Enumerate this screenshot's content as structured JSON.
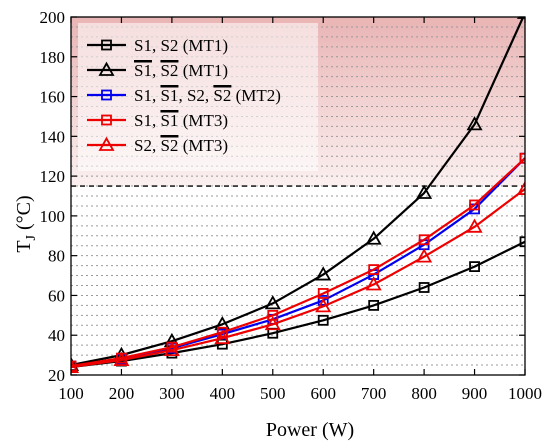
{
  "chart_data": {
    "type": "line",
    "xlabel": "Power (W)",
    "ylabel_main": "T",
    "ylabel_sub": "J",
    "ylabel_unit": " (°C)",
    "xlim": [
      100,
      1000
    ],
    "ylim": [
      20,
      200
    ],
    "xticks": [
      100,
      200,
      300,
      400,
      500,
      600,
      700,
      800,
      900,
      1000
    ],
    "yticks": [
      20,
      40,
      60,
      80,
      100,
      120,
      140,
      160,
      180,
      200
    ],
    "grid": "dotted horizontal minor lines every 5 °C",
    "threshold": {
      "y": 115,
      "style": "dashed"
    },
    "shaded_region": {
      "from": 115,
      "to": 200,
      "color_top": "#e9b4b4",
      "color_bottom": "#fbf0f0"
    },
    "legend_position": "top-left",
    "x": [
      100,
      200,
      300,
      400,
      500,
      600,
      700,
      800,
      900,
      1000
    ],
    "series": [
      {
        "name_parts": [
          [
            "S1",
            false
          ],
          [
            ", ",
            false
          ],
          [
            "S2",
            false
          ],
          [
            " (MT1)",
            false
          ]
        ],
        "color": "#000000",
        "marker": "square",
        "values": [
          24,
          27,
          31,
          35.5,
          41,
          47.5,
          55,
          64,
          74.5,
          87
        ]
      },
      {
        "name_parts": [
          [
            "S1",
            true
          ],
          [
            ", ",
            false
          ],
          [
            "S2",
            true
          ],
          [
            " (MT1)",
            false
          ]
        ],
        "color": "#000000",
        "marker": "triangle",
        "values": [
          25,
          30,
          37,
          45.5,
          56,
          70.5,
          88.5,
          111.5,
          146,
          202
        ]
      },
      {
        "name_parts": [
          [
            "S1",
            false
          ],
          [
            ", ",
            false
          ],
          [
            "S1",
            true
          ],
          [
            ", S2, ",
            false
          ],
          [
            "S2",
            true
          ],
          [
            " (MT2)",
            false
          ]
        ],
        "color": "#0000ee",
        "marker": "square",
        "values": [
          24.5,
          28,
          33.5,
          40.5,
          48,
          57.5,
          70.5,
          85.5,
          103.5,
          129
        ]
      },
      {
        "name_parts": [
          [
            "S1",
            false
          ],
          [
            ", ",
            false
          ],
          [
            "S1",
            true
          ],
          [
            " (MT3)",
            false
          ]
        ],
        "color": "#ee0000",
        "marker": "square",
        "values": [
          24.5,
          28.5,
          34,
          41.5,
          50,
          61,
          73,
          88,
          105.5,
          129
        ]
      },
      {
        "name_parts": [
          [
            "S2",
            false
          ],
          [
            ", ",
            false
          ],
          [
            "S2",
            true
          ],
          [
            " (MT3)",
            false
          ]
        ],
        "color": "#ee0000",
        "marker": "triangle",
        "values": [
          24,
          27.5,
          32.5,
          38.5,
          45.5,
          54.5,
          65.5,
          79.5,
          94.5,
          113.5
        ]
      }
    ]
  }
}
